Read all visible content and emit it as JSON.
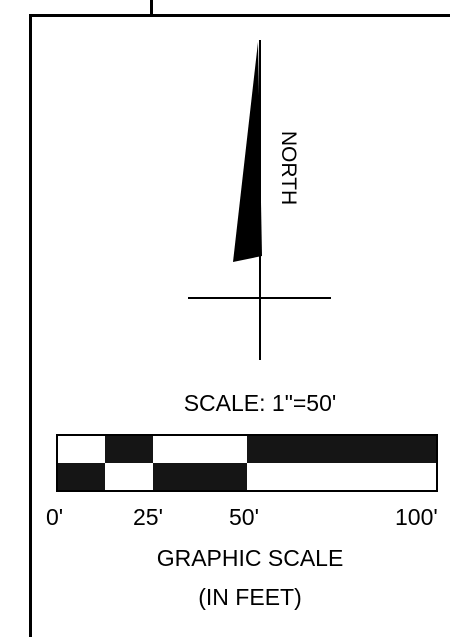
{
  "north_arrow": {
    "label": "NORTH"
  },
  "scale": {
    "title": "SCALE: 1\"=50'",
    "ticks": [
      "0'",
      "25'",
      "50'",
      "100'"
    ],
    "caption_line1": "GRAPHIC SCALE",
    "caption_line2": "(IN FEET)"
  }
}
